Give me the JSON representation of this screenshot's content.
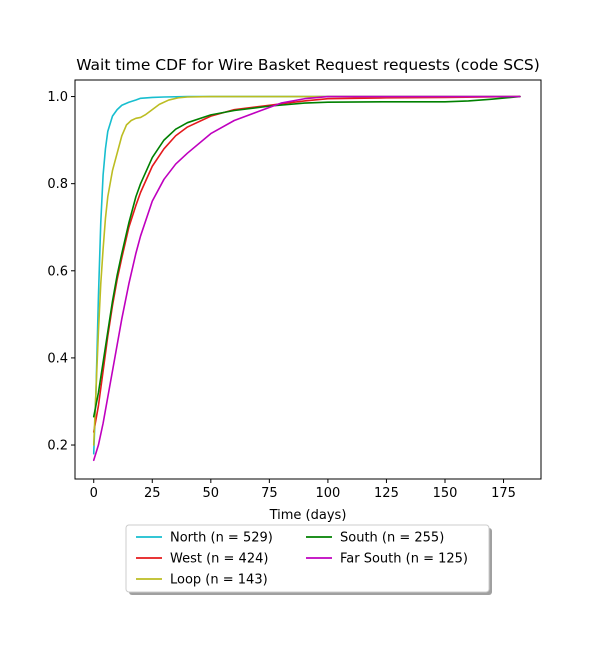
{
  "chart_data": {
    "type": "line",
    "title": "Wait time CDF for Wire Basket Request  requests (code SCS)",
    "xlabel": "Time (days)",
    "ylabel": "",
    "xlim": [
      -8,
      191
    ],
    "ylim": [
      0.122,
      1.038
    ],
    "xticks": [
      0,
      25,
      50,
      75,
      100,
      125,
      150,
      175
    ],
    "yticks": [
      0.2,
      0.4,
      0.6,
      0.8,
      1.0
    ],
    "ytick_labels": [
      "0.2",
      "0.4",
      "0.6",
      "0.8",
      "1.0"
    ],
    "grid": false,
    "legend_placement": "below-center",
    "series": [
      {
        "name": "North (n = 529)",
        "color": "#17becf",
        "x": [
          0,
          1,
          2,
          3,
          4,
          5,
          6,
          8,
          10,
          12,
          15,
          18,
          20,
          25,
          30,
          40,
          50,
          75,
          100,
          150,
          182
        ],
        "y": [
          0.18,
          0.33,
          0.54,
          0.71,
          0.82,
          0.88,
          0.92,
          0.955,
          0.97,
          0.98,
          0.987,
          0.992,
          0.996,
          0.998,
          0.999,
          1.0,
          1.0,
          1.0,
          1.0,
          1.0,
          1.0
        ]
      },
      {
        "name": "West (n = 424)",
        "color": "#e41a1c",
        "x": [
          0,
          2,
          4,
          6,
          8,
          10,
          12,
          15,
          18,
          20,
          25,
          30,
          35,
          40,
          50,
          60,
          75,
          90,
          100,
          125,
          150,
          182
        ],
        "y": [
          0.23,
          0.29,
          0.37,
          0.45,
          0.52,
          0.58,
          0.63,
          0.7,
          0.75,
          0.78,
          0.84,
          0.88,
          0.91,
          0.93,
          0.955,
          0.97,
          0.98,
          0.99,
          0.995,
          0.997,
          0.998,
          1.0
        ]
      },
      {
        "name": "Loop (n = 143)",
        "color": "#bcbd22",
        "x": [
          0,
          1,
          2,
          3,
          4,
          5,
          6,
          8,
          10,
          12,
          14,
          16,
          18,
          20,
          22,
          25,
          28,
          32,
          36,
          40,
          50,
          75,
          100,
          182
        ],
        "y": [
          0.2,
          0.33,
          0.46,
          0.57,
          0.65,
          0.72,
          0.77,
          0.83,
          0.87,
          0.91,
          0.935,
          0.945,
          0.95,
          0.952,
          0.958,
          0.97,
          0.982,
          0.992,
          0.997,
          0.999,
          1.0,
          1.0,
          1.0,
          1.0
        ]
      },
      {
        "name": "South (n = 255)",
        "color": "#008000",
        "x": [
          0,
          2,
          4,
          6,
          8,
          10,
          12,
          15,
          18,
          20,
          25,
          30,
          35,
          40,
          50,
          60,
          75,
          90,
          100,
          125,
          150,
          160,
          170,
          182
        ],
        "y": [
          0.265,
          0.32,
          0.39,
          0.46,
          0.53,
          0.59,
          0.64,
          0.71,
          0.77,
          0.8,
          0.86,
          0.9,
          0.925,
          0.94,
          0.958,
          0.968,
          0.978,
          0.985,
          0.987,
          0.988,
          0.988,
          0.99,
          0.994,
          1.0
        ]
      },
      {
        "name": "Far South (n = 125)",
        "color": "#bf00bf",
        "x": [
          0,
          2,
          4,
          6,
          8,
          10,
          12,
          15,
          18,
          20,
          25,
          30,
          35,
          40,
          50,
          60,
          70,
          80,
          90,
          100,
          125,
          150,
          182
        ],
        "y": [
          0.165,
          0.2,
          0.25,
          0.31,
          0.37,
          0.43,
          0.49,
          0.57,
          0.64,
          0.68,
          0.76,
          0.81,
          0.845,
          0.87,
          0.915,
          0.945,
          0.965,
          0.985,
          0.995,
          1.0,
          1.0,
          1.0,
          1.0
        ]
      }
    ]
  }
}
